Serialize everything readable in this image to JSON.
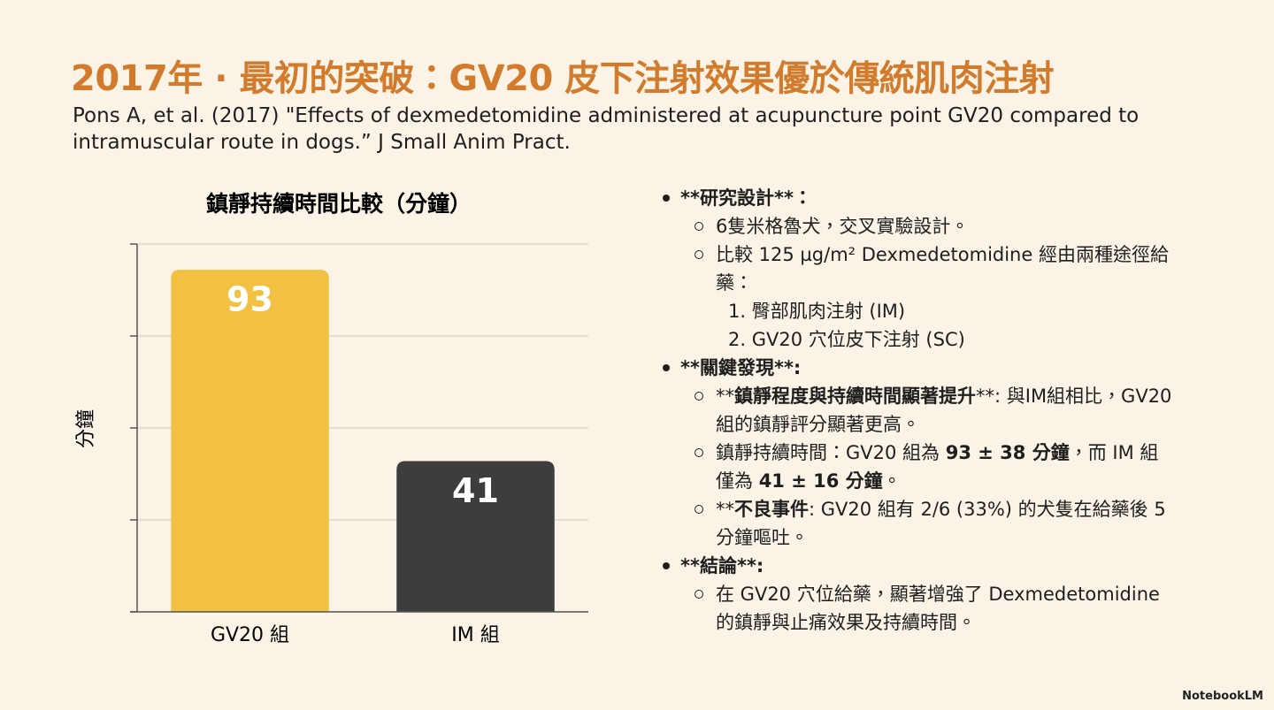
{
  "title": "2017年 · 最初的突破：GV20 皮下注射效果優於傳統肌肉注射",
  "citation": "Pons A, et al. (2017) \"Effects of dexmedetomidine administered at acupuncture point GV20 compared to intramuscular route in dogs.” J Small Anim Pract.",
  "chart_data": {
    "type": "bar",
    "title": "鎮靜持續時間比較（分鐘）",
    "y_label": "分鐘",
    "categories": [
      "GV20 組",
      "IM 組"
    ],
    "values": [
      93,
      41
    ],
    "colors": [
      "#f2c142",
      "#3d3d3d"
    ],
    "ylim": [
      0,
      100
    ],
    "yticks": [
      0,
      25,
      50,
      75,
      100
    ],
    "grid": true
  },
  "notes": [
    {
      "heading": "**研究設計**：",
      "items": [
        {
          "segments": [
            {
              "text": "6隻米格魯犬，交叉實驗設計。"
            }
          ]
        },
        {
          "segments": [
            {
              "text": "比較 125 µg/m² Dexmedetomidine 經由兩種途徑給藥："
            }
          ],
          "steps": [
            "1. 臀部肌肉注射 (IM)",
            "2. GV20 穴位皮下注射 (SC)"
          ]
        }
      ]
    },
    {
      "heading": "**關鍵發現**:",
      "items": [
        {
          "segments": [
            {
              "text": "**"
            },
            {
              "text": "鎮靜程度與持續時間顯著提升",
              "bold": true
            },
            {
              "text": "**: 與IM組相比，GV20組的鎮靜評分顯著更高。"
            }
          ]
        },
        {
          "segments": [
            {
              "text": "鎮靜持續時間：GV20 組為 "
            },
            {
              "text": "93 ± 38 分鐘",
              "bold": true
            },
            {
              "text": "，而 IM 組僅為 "
            },
            {
              "text": "41 ± 16 分鐘",
              "bold": true
            },
            {
              "text": "。"
            }
          ]
        },
        {
          "segments": [
            {
              "text": "**"
            },
            {
              "text": "不良事件",
              "bold": true
            },
            {
              "text": ": GV20 組有 2/6 (33%) 的犬隻在給藥後 5 分鐘嘔吐。"
            }
          ]
        }
      ]
    },
    {
      "heading": "**結論**:",
      "items": [
        {
          "segments": [
            {
              "text": "在 GV20 穴位給藥，顯著增強了 Dexmedetomidine 的鎮靜與止痛效果及持續時間。"
            }
          ]
        }
      ]
    }
  ],
  "footer": "NotebookLM"
}
